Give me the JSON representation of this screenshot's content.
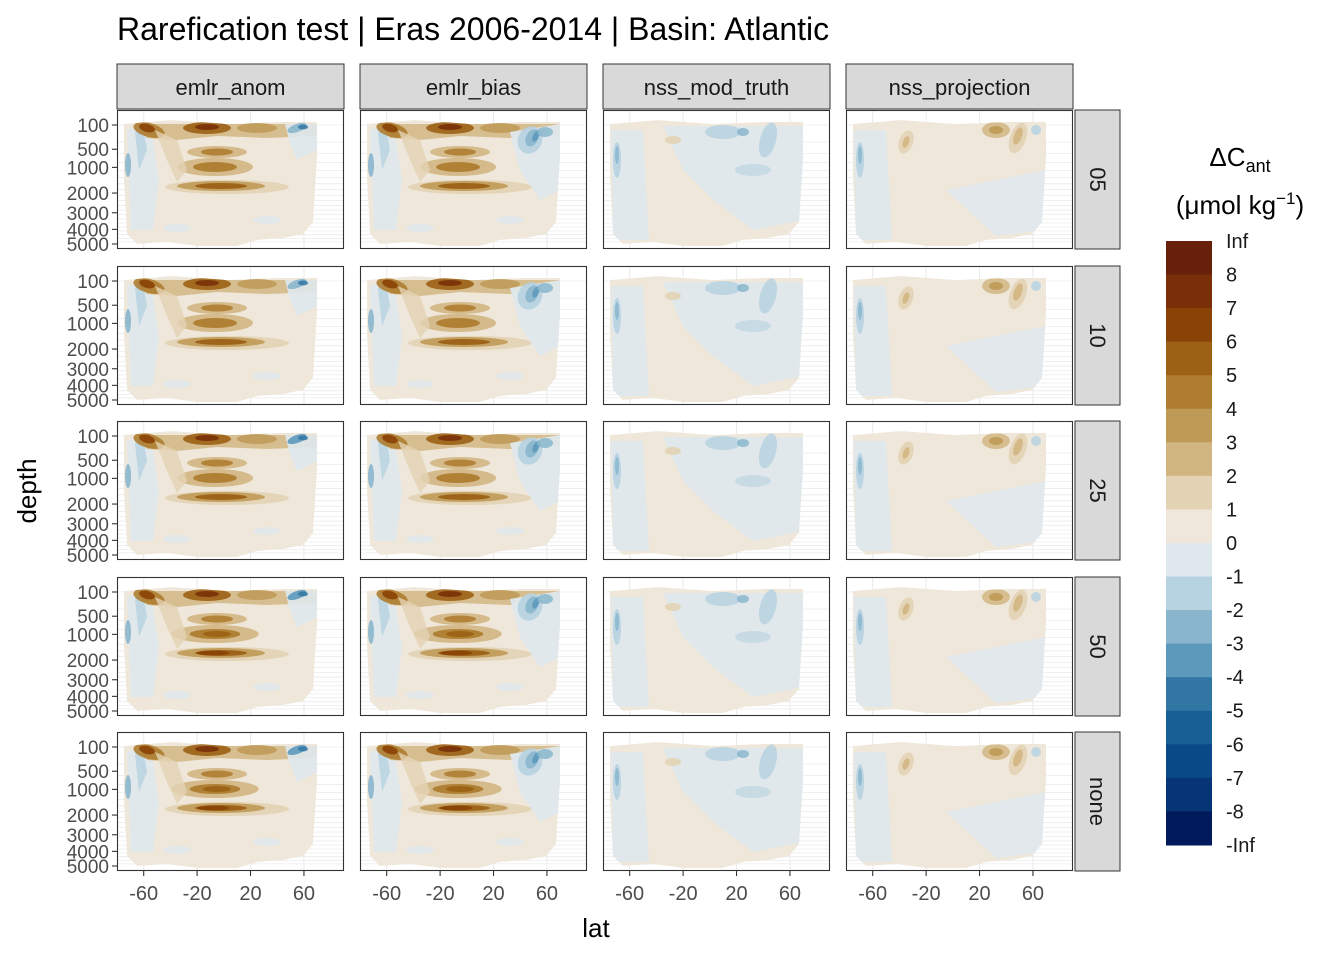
{
  "chart_data": {
    "type": "heatmap",
    "subtype": "filled-contour facet grid",
    "title": "Rarefication test | Eras 2006-2014 | Basin: Atlantic",
    "xlabel": "lat",
    "ylabel": "depth",
    "x_ticks": [
      -60,
      -20,
      20,
      60
    ],
    "x_tick_labels": [
      "-60",
      "-20",
      "20",
      "60"
    ],
    "y_ticks": [
      100,
      500,
      1000,
      2000,
      3000,
      4000,
      5000
    ],
    "y_tick_labels": [
      "100",
      "500",
      "1000",
      "2000",
      "3000",
      "4000",
      "5000"
    ],
    "y_reversed": true,
    "facet_columns": [
      "emlr_anom",
      "emlr_bias",
      "nss_mod_truth",
      "nss_projection"
    ],
    "facet_rows": [
      "05",
      "10",
      "25",
      "50",
      "none"
    ],
    "legend": {
      "title_main": "ΔC",
      "title_sub": "ant",
      "unit_open": "(μmol kg",
      "unit_sup": "−1",
      "unit_close": ")",
      "placement": "right",
      "breaks": [
        "Inf",
        "8",
        "7",
        "6",
        "5",
        "4",
        "3",
        "2",
        "1",
        "0",
        "-1",
        "-2",
        "-3",
        "-4",
        "-5",
        "-6",
        "-7",
        "-8",
        "-Inf"
      ],
      "colors": [
        "#67200a",
        "#793008",
        "#8a4306",
        "#9c6115",
        "#ae7d30",
        "#bf9a57",
        "#d1b682",
        "#e3d3b4",
        "#efe7da",
        "#dfe8ed",
        "#b7d2e1",
        "#8ab6cd",
        "#5d99bb",
        "#3277a4",
        "#185f95",
        "#0a4987",
        "#053575",
        "#001a5b"
      ]
    },
    "grid": true,
    "theme": "bw"
  }
}
